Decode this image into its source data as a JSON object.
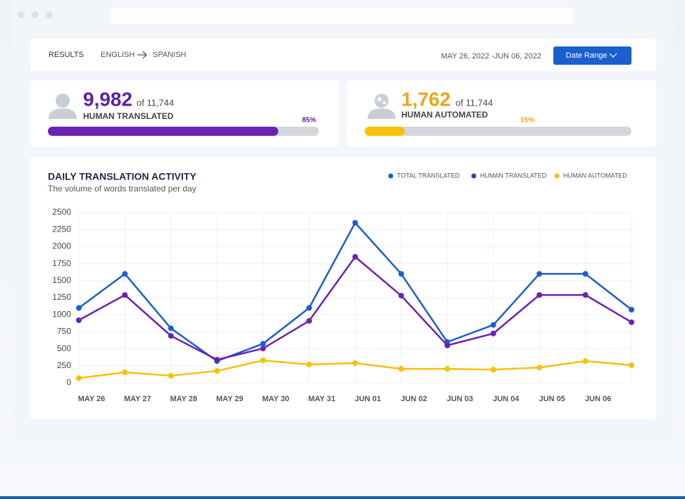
{
  "header": {
    "results": "RESULTS",
    "source": "ENGLISH",
    "target": "SPANISH",
    "date_range": "MAY 26, 2022 -JUN 06, 2022",
    "button": "Date Range"
  },
  "stats": [
    {
      "value": "9,982",
      "of": "of 11,744",
      "label": "HUMAN TRANSLATED",
      "percent": 85,
      "percent_label": "85%",
      "color": "#5b1fa8"
    },
    {
      "value": "1,762",
      "of": "of 11,744",
      "label": "HUMAN AUTOMATED",
      "percent": 15,
      "percent_label": "15%",
      "color": "#f0a21a"
    }
  ],
  "chart_data": {
    "type": "line",
    "title": "DAILY TRANSLATION ACTIVITY",
    "subtitle": "The volume of words translated per day",
    "categories": [
      "MAY 26",
      "MAY 27",
      "MAY 28",
      "MAY 29",
      "MAY 30",
      "MAY 31",
      "JUN 01",
      "JUN 02",
      "JUN 03",
      "JUN 04",
      "JUN 05",
      "JUN 06",
      null
    ],
    "series": [
      {
        "name": "TOTAL TRANSLATED",
        "color": "#1a5fd0",
        "values": [
          1100,
          1600,
          800,
          320,
          575,
          1100,
          2350,
          1600,
          600,
          850,
          1600,
          1600,
          1075
        ]
      },
      {
        "name": "HUMAN TRANSLATED",
        "color": "#6a22b5",
        "values": [
          920,
          1290,
          690,
          340,
          505,
          910,
          1850,
          1280,
          550,
          725,
          1290,
          1290,
          890
        ]
      },
      {
        "name": "HUMAN AUTOMATED",
        "color": "#f5c10a",
        "values": [
          70,
          155,
          105,
          175,
          330,
          270,
          290,
          205,
          205,
          195,
          225,
          320,
          260
        ]
      }
    ],
    "ylim": [
      0,
      2500
    ],
    "yticks": [
      0,
      250,
      500,
      750,
      1000,
      1250,
      1500,
      1750,
      2000,
      2250,
      2500
    ],
    "grid": true
  }
}
